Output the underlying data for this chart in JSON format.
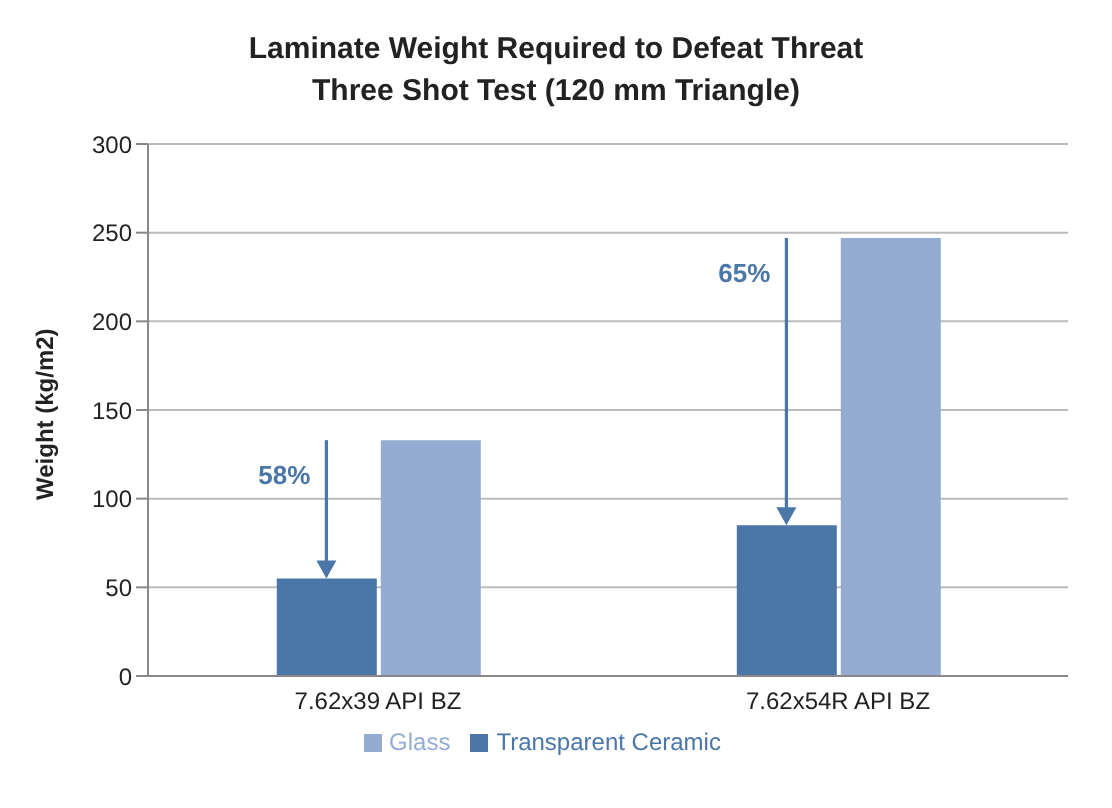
{
  "chart_data": {
    "type": "bar",
    "title": "Laminate Weight Required to Defeat Threat",
    "subtitle": "Three Shot Test (120 mm Triangle)",
    "ylabel": "Weight (kg/m2)",
    "categories": [
      "7.62x39 API BZ",
      "7.62x54R API BZ"
    ],
    "series": [
      {
        "name": "Transparent Ceramic",
        "color": "#4a76a8",
        "values": [
          55,
          85
        ]
      },
      {
        "name": "Glass",
        "color": "#95acd2",
        "values": [
          133,
          247
        ]
      }
    ],
    "ylim": [
      0,
      300
    ],
    "yticks": [
      0,
      50,
      100,
      150,
      200,
      250,
      300
    ],
    "grid": "y",
    "legend": "bottom",
    "annotations": [
      {
        "text": "58%",
        "x": "7.62x39 API BZ",
        "y": 133
      },
      {
        "text": "65%",
        "x": "7.62x54R API BZ",
        "y": 247
      }
    ]
  }
}
